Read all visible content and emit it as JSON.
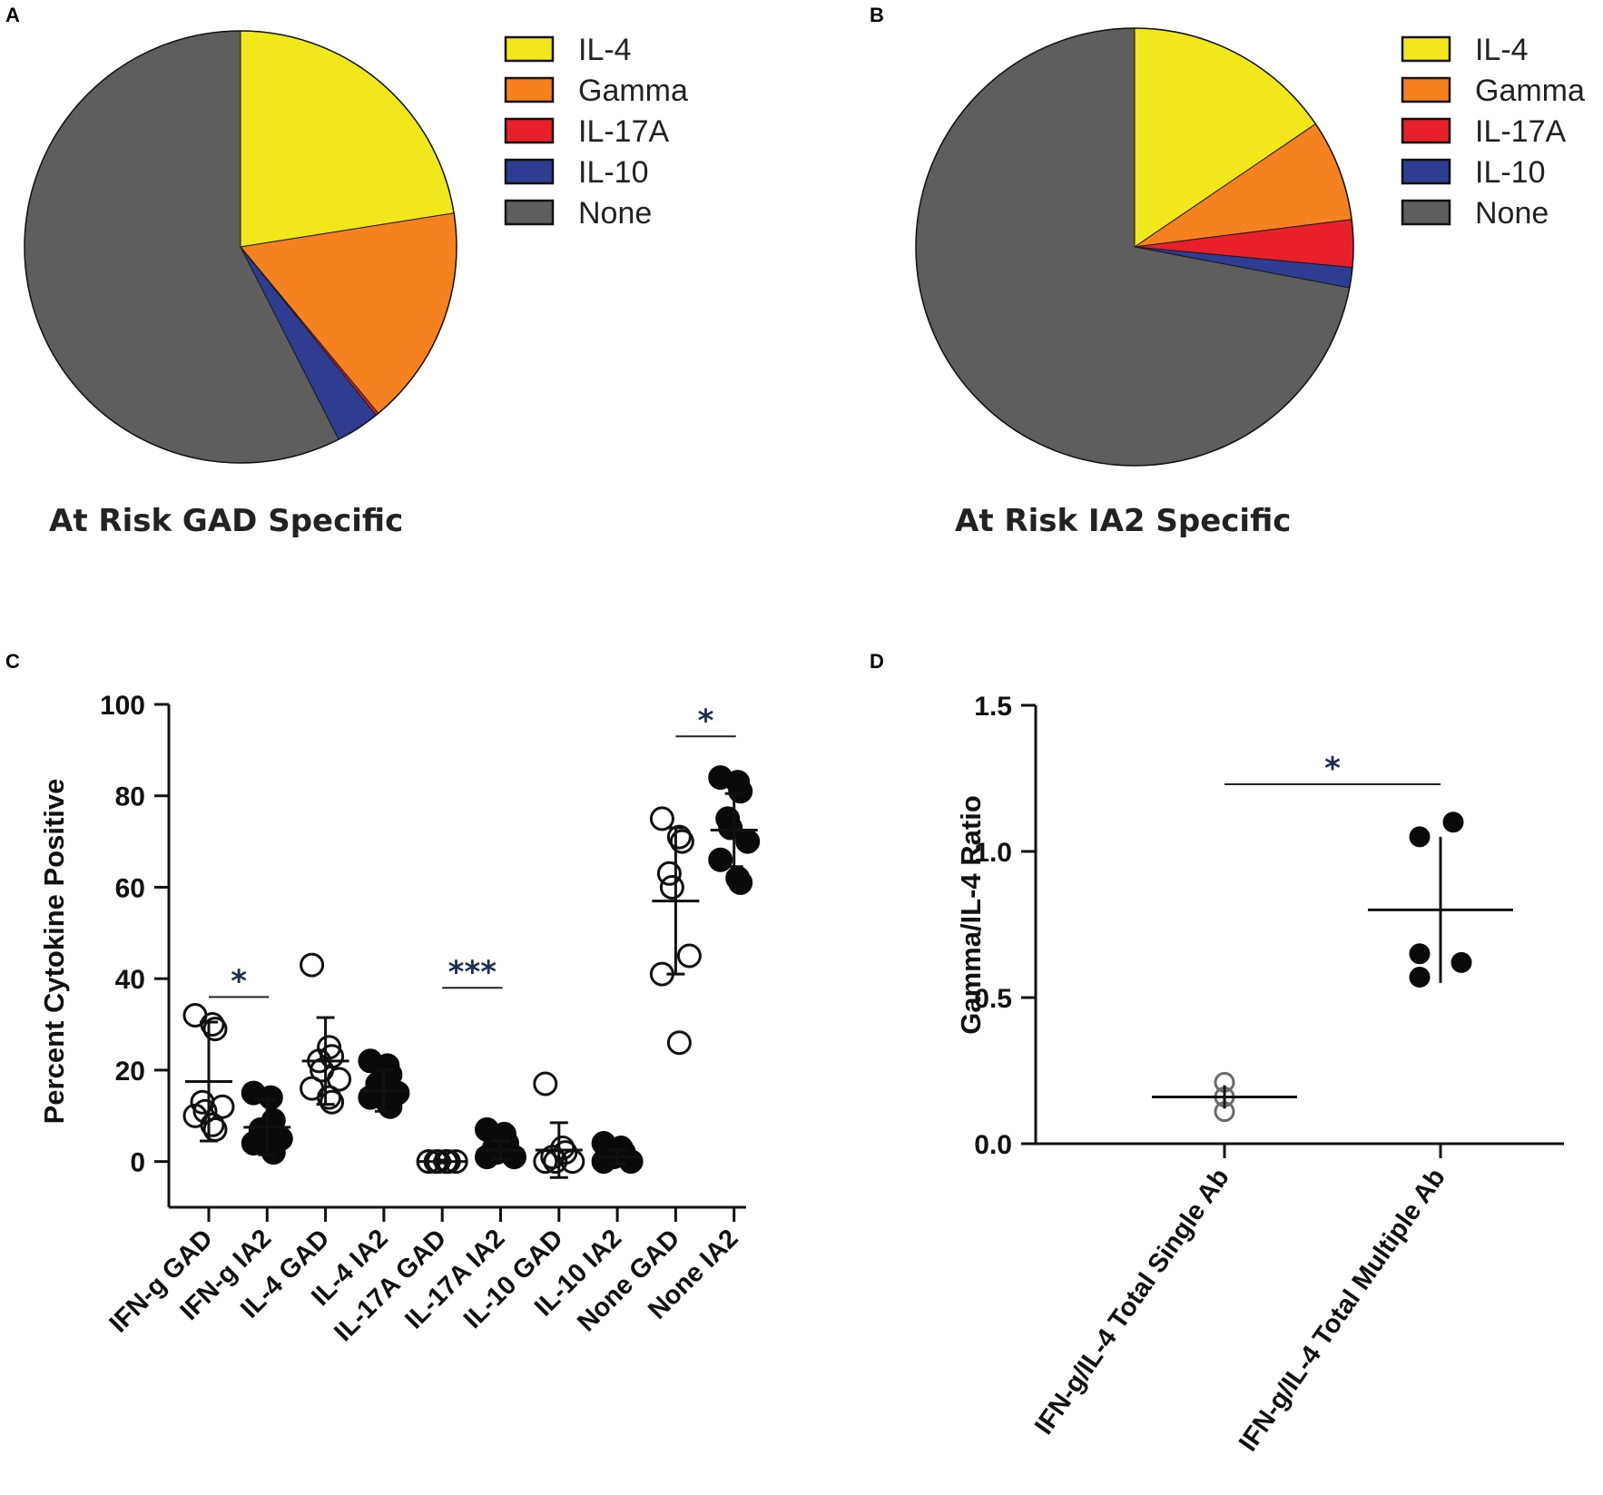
{
  "panels": {
    "a": "A",
    "b": "B",
    "c": "C",
    "d": "D"
  },
  "colors": {
    "IL-4": "#f0e81a",
    "Gamma": "#f5821f",
    "IL-17A": "#e8202a",
    "IL-10": "#2e3c92",
    "None": "#5e5e5e"
  },
  "chart_data": [
    {
      "type": "pie",
      "title": "At Risk GAD Specific",
      "legend": [
        "IL-4",
        "Gamma",
        "IL-17A",
        "IL-10",
        "None"
      ],
      "slices": [
        {
          "label": "IL-4",
          "value": 22.5
        },
        {
          "label": "Gamma",
          "value": 16.5
        },
        {
          "label": "IL-17A",
          "value": 0.2
        },
        {
          "label": "IL-10",
          "value": 3.3
        },
        {
          "label": "None",
          "value": 57.5
        }
      ]
    },
    {
      "type": "pie",
      "title": "At Risk IA2 Specific",
      "legend": [
        "IL-4",
        "Gamma",
        "IL-17A",
        "IL-10",
        "None"
      ],
      "slices": [
        {
          "label": "IL-4",
          "value": 15.5
        },
        {
          "label": "Gamma",
          "value": 7.5
        },
        {
          "label": "IL-17A",
          "value": 3.5
        },
        {
          "label": "IL-10",
          "value": 1.5
        },
        {
          "label": "None",
          "value": 72.0
        }
      ]
    },
    {
      "type": "scatter",
      "ylabel": "Percent Cytokine Positive",
      "ylim": [
        -10,
        100
      ],
      "yticks": [
        0,
        20,
        40,
        60,
        80,
        100
      ],
      "categories": [
        "IFN-g GAD",
        "IFN-g IA2",
        "IL-4 GAD",
        "IL-4 IA2",
        "IL-17A GAD",
        "IL-17A IA2",
        "IL-10 GAD",
        "IL-10 IA2",
        "None GAD",
        "None IA2"
      ],
      "groups": [
        {
          "category": "IFN-g GAD",
          "filled": false,
          "mean": 17.5,
          "sd": 13,
          "points": [
            32,
            30,
            29,
            13,
            11,
            12,
            10,
            8,
            7
          ]
        },
        {
          "category": "IFN-g IA2",
          "filled": true,
          "mean": 7.5,
          "sd": 6,
          "points": [
            15,
            14,
            9,
            7,
            6,
            5,
            4,
            3,
            2
          ]
        },
        {
          "category": "IL-4 GAD",
          "filled": false,
          "mean": 22,
          "sd": 9.5,
          "points": [
            43,
            25,
            23,
            22,
            20,
            18,
            16,
            14,
            13
          ]
        },
        {
          "category": "IL-4 IA2",
          "filled": true,
          "mean": 15.5,
          "sd": 4.5,
          "points": [
            22,
            21,
            19,
            17,
            16,
            15,
            14,
            13,
            12
          ]
        },
        {
          "category": "IL-17A GAD",
          "filled": false,
          "mean": 0,
          "sd": 0.3,
          "points": [
            0,
            0,
            0,
            0,
            0,
            0,
            0,
            0
          ]
        },
        {
          "category": "IL-17A IA2",
          "filled": true,
          "mean": 2.5,
          "sd": 2,
          "points": [
            7,
            6,
            4,
            3,
            2,
            1,
            1
          ]
        },
        {
          "category": "IL-10 GAD",
          "filled": false,
          "mean": 2.5,
          "sd": 6,
          "points": [
            17,
            3,
            2,
            1,
            0,
            0,
            0
          ]
        },
        {
          "category": "IL-10 IA2",
          "filled": true,
          "mean": 1,
          "sd": 1.5,
          "points": [
            4,
            3,
            2,
            1,
            1,
            0,
            0
          ]
        },
        {
          "category": "None GAD",
          "filled": false,
          "mean": 57,
          "sd": 16,
          "points": [
            75,
            71,
            70,
            63,
            60,
            45,
            41,
            26
          ]
        },
        {
          "category": "None IA2",
          "filled": true,
          "mean": 72.5,
          "sd": 8,
          "points": [
            84,
            83,
            81,
            75,
            73,
            70,
            66,
            62,
            61
          ]
        }
      ],
      "significance": [
        {
          "from": 0,
          "to": 1,
          "y": 36,
          "label": "*"
        },
        {
          "from": 4,
          "to": 5,
          "y": 38,
          "label": "***"
        },
        {
          "from": 8,
          "to": 9,
          "y": 93,
          "label": "*"
        }
      ]
    },
    {
      "type": "scatter",
      "ylabel": "Gamma/IL-4  Ratio",
      "ylim": [
        0,
        1.5
      ],
      "yticks": [
        "0.0",
        "0.5",
        "1.0",
        "1.5"
      ],
      "categories": [
        "IFN-g/IL-4 Total Single Ab",
        "IFN-g/IL-4 Total Multiple Ab"
      ],
      "groups": [
        {
          "category": "IFN-g/IL-4 Total Single Ab",
          "filled": false,
          "mean": 0.16,
          "sd": 0.04,
          "points": [
            0.21,
            0.16,
            0.11
          ]
        },
        {
          "category": "IFN-g/IL-4 Total Multiple Ab",
          "filled": true,
          "mean": 0.8,
          "sd": 0.25,
          "points": [
            1.1,
            1.05,
            0.65,
            0.62,
            0.57
          ]
        }
      ],
      "significance": [
        {
          "from": 0,
          "to": 1,
          "y": 1.23,
          "label": "*"
        }
      ]
    }
  ]
}
